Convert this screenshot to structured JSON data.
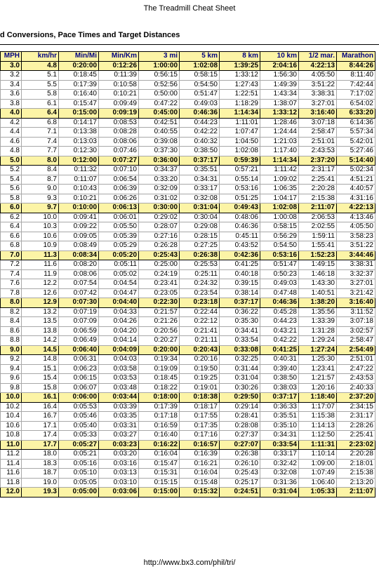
{
  "page": {
    "title": "The Treadmill Cheat Sheet",
    "section_title": "d Conversions, Pace Times and Target Distances",
    "footer_url": "http://www.bx3.com/phil/tri/"
  },
  "colors": {
    "highlight": "#fcf4a6",
    "header_text": "#000080"
  },
  "table": {
    "headers": [
      "MPH",
      "km/hr",
      "Min/Mi",
      "Min/Km",
      "3 mi",
      "5 km",
      "8 km",
      "10 km",
      "1/2 mar.",
      "Marathon"
    ],
    "rows": [
      {
        "cells": [
          "3.0",
          "4.8",
          "0:20:00",
          "0:12:26",
          "1:00:00",
          "1:02:08",
          "1:39:25",
          "2:04:16",
          "4:22:13",
          "8:44:26"
        ],
        "highlight": true
      },
      {
        "cells": [
          "3.2",
          "5.1",
          "0:18:45",
          "0:11:39",
          "0:56:15",
          "0:58:15",
          "1:33:12",
          "1:56:30",
          "4:05:50",
          "8:11:40"
        ],
        "highlight": false
      },
      {
        "cells": [
          "3.4",
          "5.5",
          "0:17:39",
          "0:10:58",
          "0:52:56",
          "0:54:50",
          "1:27:43",
          "1:49:39",
          "3:51:22",
          "7:42:44"
        ],
        "highlight": false
      },
      {
        "cells": [
          "3.6",
          "5.8",
          "0:16:40",
          "0:10:21",
          "0:50:00",
          "0:51:47",
          "1:22:51",
          "1:43:34",
          "3:38:31",
          "7:17:02"
        ],
        "highlight": false
      },
      {
        "cells": [
          "3.8",
          "6.1",
          "0:15:47",
          "0:09:49",
          "0:47:22",
          "0:49:03",
          "1:18:29",
          "1:38:07",
          "3:27:01",
          "6:54:02"
        ],
        "highlight": false
      },
      {
        "cells": [
          "4.0",
          "6.4",
          "0:15:00",
          "0:09:19",
          "0:45:00",
          "0:46:36",
          "1:14:34",
          "1:33:12",
          "3:16:40",
          "6:33:20"
        ],
        "highlight": true
      },
      {
        "cells": [
          "4.2",
          "6.8",
          "0:14:17",
          "0:08:53",
          "0:42:51",
          "0:44:23",
          "1:11:01",
          "1:28:46",
          "3:07:18",
          "6:14:36"
        ],
        "highlight": false
      },
      {
        "cells": [
          "4.4",
          "7.1",
          "0:13:38",
          "0:08:28",
          "0:40:55",
          "0:42:22",
          "1:07:47",
          "1:24:44",
          "2:58:47",
          "5:57:34"
        ],
        "highlight": false
      },
      {
        "cells": [
          "4.6",
          "7.4",
          "0:13:03",
          "0:08:06",
          "0:39:08",
          "0:40:32",
          "1:04:50",
          "1:21:03",
          "2:51:01",
          "5:42:01"
        ],
        "highlight": false
      },
      {
        "cells": [
          "4.8",
          "7.7",
          "0:12:30",
          "0:07:46",
          "0:37:30",
          "0:38:50",
          "1:02:08",
          "1:17:40",
          "2:43:53",
          "5:27:46"
        ],
        "highlight": false
      },
      {
        "cells": [
          "5.0",
          "8.0",
          "0:12:00",
          "0:07:27",
          "0:36:00",
          "0:37:17",
          "0:59:39",
          "1:14:34",
          "2:37:20",
          "5:14:40"
        ],
        "highlight": true
      },
      {
        "cells": [
          "5.2",
          "8.4",
          "0:11:32",
          "0:07:10",
          "0:34:37",
          "0:35:51",
          "0:57:21",
          "1:11:42",
          "2:31:17",
          "5:02:34"
        ],
        "highlight": false
      },
      {
        "cells": [
          "5.4",
          "8.7",
          "0:11:07",
          "0:06:54",
          "0:33:20",
          "0:34:31",
          "0:55:14",
          "1:09:02",
          "2:25:41",
          "4:51:21"
        ],
        "highlight": false
      },
      {
        "cells": [
          "5.6",
          "9.0",
          "0:10:43",
          "0:06:39",
          "0:32:09",
          "0:33:17",
          "0:53:16",
          "1:06:35",
          "2:20:28",
          "4:40:57"
        ],
        "highlight": false
      },
      {
        "cells": [
          "5.8",
          "9.3",
          "0:10:21",
          "0:06:26",
          "0:31:02",
          "0:32:08",
          "0:51:25",
          "1:04:17",
          "2:15:38",
          "4:31:16"
        ],
        "highlight": false
      },
      {
        "cells": [
          "6.0",
          "9.7",
          "0:10:00",
          "0:06:13",
          "0:30:00",
          "0:31:04",
          "0:49:43",
          "1:02:08",
          "2:11:07",
          "4:22:13"
        ],
        "highlight": true
      },
      {
        "cells": [
          "6.2",
          "10.0",
          "0:09:41",
          "0:06:01",
          "0:29:02",
          "0:30:04",
          "0:48:06",
          "1:00:08",
          "2:06:53",
          "4:13:46"
        ],
        "highlight": false
      },
      {
        "cells": [
          "6.4",
          "10.3",
          "0:09:22",
          "0:05:50",
          "0:28:07",
          "0:29:08",
          "0:46:36",
          "0:58:15",
          "2:02:55",
          "4:05:50"
        ],
        "highlight": false
      },
      {
        "cells": [
          "6.6",
          "10.6",
          "0:09:05",
          "0:05:39",
          "0:27:16",
          "0:28:15",
          "0:45:11",
          "0:56:29",
          "1:59:11",
          "3:58:23"
        ],
        "highlight": false
      },
      {
        "cells": [
          "6.8",
          "10.9",
          "0:08:49",
          "0:05:29",
          "0:26:28",
          "0:27:25",
          "0:43:52",
          "0:54:50",
          "1:55:41",
          "3:51:22"
        ],
        "highlight": false
      },
      {
        "cells": [
          "7.0",
          "11.3",
          "0:08:34",
          "0:05:20",
          "0:25:43",
          "0:26:38",
          "0:42:36",
          "0:53:16",
          "1:52:23",
          "3:44:46"
        ],
        "highlight": true
      },
      {
        "cells": [
          "7.2",
          "11.6",
          "0:08:20",
          "0:05:11",
          "0:25:00",
          "0:25:53",
          "0:41:25",
          "0:51:47",
          "1:49:15",
          "3:38:31"
        ],
        "highlight": false
      },
      {
        "cells": [
          "7.4",
          "11.9",
          "0:08:06",
          "0:05:02",
          "0:24:19",
          "0:25:11",
          "0:40:18",
          "0:50:23",
          "1:46:18",
          "3:32:37"
        ],
        "highlight": false
      },
      {
        "cells": [
          "7.6",
          "12.2",
          "0:07:54",
          "0:04:54",
          "0:23:41",
          "0:24:32",
          "0:39:15",
          "0:49:03",
          "1:43:30",
          "3:27:01"
        ],
        "highlight": false
      },
      {
        "cells": [
          "7.8",
          "12.6",
          "0:07:42",
          "0:04:47",
          "0:23:05",
          "0:23:54",
          "0:38:14",
          "0:47:48",
          "1:40:51",
          "3:21:42"
        ],
        "highlight": false
      },
      {
        "cells": [
          "8.0",
          "12.9",
          "0:07:30",
          "0:04:40",
          "0:22:30",
          "0:23:18",
          "0:37:17",
          "0:46:36",
          "1:38:20",
          "3:16:40"
        ],
        "highlight": true
      },
      {
        "cells": [
          "8.2",
          "13.2",
          "0:07:19",
          "0:04:33",
          "0:21:57",
          "0:22:44",
          "0:36:22",
          "0:45:28",
          "1:35:56",
          "3:11:52"
        ],
        "highlight": false
      },
      {
        "cells": [
          "8.4",
          "13.5",
          "0:07:09",
          "0:04:26",
          "0:21:26",
          "0:22:12",
          "0:35:30",
          "0:44:23",
          "1:33:39",
          "3:07:18"
        ],
        "highlight": false
      },
      {
        "cells": [
          "8.6",
          "13.8",
          "0:06:59",
          "0:04:20",
          "0:20:56",
          "0:21:41",
          "0:34:41",
          "0:43:21",
          "1:31:28",
          "3:02:57"
        ],
        "highlight": false
      },
      {
        "cells": [
          "8.8",
          "14.2",
          "0:06:49",
          "0:04:14",
          "0:20:27",
          "0:21:11",
          "0:33:54",
          "0:42:22",
          "1:29:24",
          "2:58:47"
        ],
        "highlight": false
      },
      {
        "cells": [
          "9.0",
          "14.5",
          "0:06:40",
          "0:04:09",
          "0:20:00",
          "0:20:43",
          "0:33:08",
          "0:41:25",
          "1:27:24",
          "2:54:49"
        ],
        "highlight": true
      },
      {
        "cells": [
          "9.2",
          "14.8",
          "0:06:31",
          "0:04:03",
          "0:19:34",
          "0:20:16",
          "0:32:25",
          "0:40:31",
          "1:25:30",
          "2:51:01"
        ],
        "highlight": false
      },
      {
        "cells": [
          "9.4",
          "15.1",
          "0:06:23",
          "0:03:58",
          "0:19:09",
          "0:19:50",
          "0:31:44",
          "0:39:40",
          "1:23:41",
          "2:47:22"
        ],
        "highlight": false
      },
      {
        "cells": [
          "9.6",
          "15.4",
          "0:06:15",
          "0:03:53",
          "0:18:45",
          "0:19:25",
          "0:31:04",
          "0:38:50",
          "1:21:57",
          "2:43:53"
        ],
        "highlight": false
      },
      {
        "cells": [
          "9.8",
          "15.8",
          "0:06:07",
          "0:03:48",
          "0:18:22",
          "0:19:01",
          "0:30:26",
          "0:38:03",
          "1:20:16",
          "2:40:33"
        ],
        "highlight": false
      },
      {
        "cells": [
          "10.0",
          "16.1",
          "0:06:00",
          "0:03:44",
          "0:18:00",
          "0:18:38",
          "0:29:50",
          "0:37:17",
          "1:18:40",
          "2:37:20"
        ],
        "highlight": true
      },
      {
        "cells": [
          "10.2",
          "16.4",
          "0:05:53",
          "0:03:39",
          "0:17:39",
          "0:18:17",
          "0:29:14",
          "0:36:33",
          "1:17:07",
          "2:34:15"
        ],
        "highlight": false
      },
      {
        "cells": [
          "10.4",
          "16.7",
          "0:05:46",
          "0:03:35",
          "0:17:18",
          "0:17:55",
          "0:28:41",
          "0:35:51",
          "1:15:38",
          "2:31:17"
        ],
        "highlight": false
      },
      {
        "cells": [
          "10.6",
          "17.1",
          "0:05:40",
          "0:03:31",
          "0:16:59",
          "0:17:35",
          "0:28:08",
          "0:35:10",
          "1:14:13",
          "2:28:26"
        ],
        "highlight": false
      },
      {
        "cells": [
          "10.8",
          "17.4",
          "0:05:33",
          "0:03:27",
          "0:16:40",
          "0:17:16",
          "0:27:37",
          "0:34:31",
          "1:12:50",
          "2:25:41"
        ],
        "highlight": false
      },
      {
        "cells": [
          "11.0",
          "17.7",
          "0:05:27",
          "0:03:23",
          "0:16:22",
          "0:16:57",
          "0:27:07",
          "0:33:54",
          "1:11:31",
          "2:23:02"
        ],
        "highlight": true
      },
      {
        "cells": [
          "11.2",
          "18.0",
          "0:05:21",
          "0:03:20",
          "0:16:04",
          "0:16:39",
          "0:26:38",
          "0:33:17",
          "1:10:14",
          "2:20:28"
        ],
        "highlight": false
      },
      {
        "cells": [
          "11.4",
          "18.3",
          "0:05:16",
          "0:03:16",
          "0:15:47",
          "0:16:21",
          "0:26:10",
          "0:32:42",
          "1:09:00",
          "2:18:01"
        ],
        "highlight": false
      },
      {
        "cells": [
          "11.6",
          "18.7",
          "0:05:10",
          "0:03:13",
          "0:15:31",
          "0:16:04",
          "0:25:43",
          "0:32:08",
          "1:07:49",
          "2:15:38"
        ],
        "highlight": false
      },
      {
        "cells": [
          "11.8",
          "19.0",
          "0:05:05",
          "0:03:10",
          "0:15:15",
          "0:15:48",
          "0:25:17",
          "0:31:36",
          "1:06:40",
          "2:13:20"
        ],
        "highlight": false
      },
      {
        "cells": [
          "12.0",
          "19.3",
          "0:05:00",
          "0:03:06",
          "0:15:00",
          "0:15:32",
          "0:24:51",
          "0:31:04",
          "1:05:33",
          "2:11:07"
        ],
        "highlight": true
      }
    ]
  }
}
